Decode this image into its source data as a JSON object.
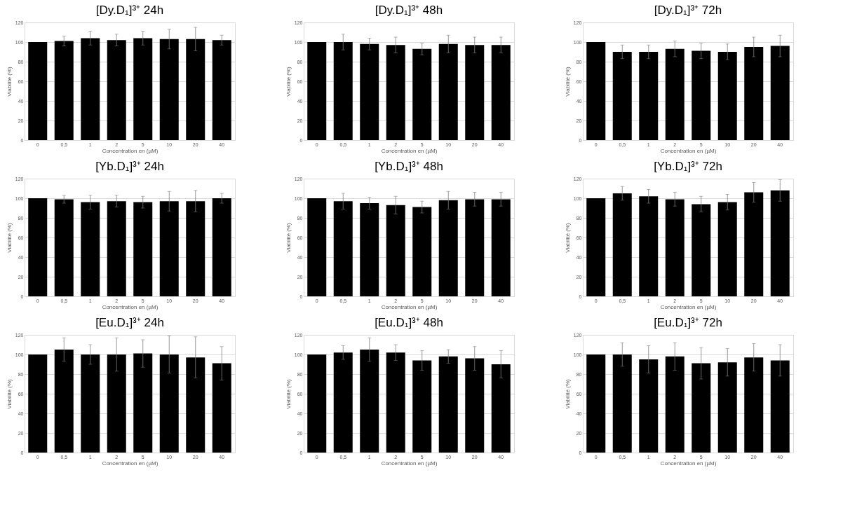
{
  "chart_data": [
    {
      "type": "bar",
      "title": "[Dy.D₁]³⁺ 24h",
      "xlabel": "Concentration en (µM)",
      "ylabel": "Viabilité (%)",
      "categories": [
        "0",
        "0,5",
        "1",
        "2",
        "5",
        "10",
        "20",
        "40"
      ],
      "values": [
        100,
        101,
        104,
        102,
        104,
        103,
        103,
        102
      ],
      "errors": [
        null,
        5,
        7,
        6,
        7,
        10,
        12,
        5
      ],
      "color": "#000000",
      "ylim": [
        0,
        120
      ],
      "yticks": [
        0,
        20,
        40,
        60,
        80,
        100,
        120
      ],
      "grid": "y"
    },
    {
      "type": "bar",
      "title": "[Dy.D₁]³⁺ 48h",
      "xlabel": "Concentration en (µM)",
      "ylabel": "Viabilité (%)",
      "categories": [
        "0",
        "0,5",
        "1",
        "2",
        "5",
        "10",
        "20",
        "40"
      ],
      "values": [
        100,
        100,
        98,
        97,
        93,
        98,
        97,
        97
      ],
      "errors": [
        null,
        8,
        6,
        8,
        6,
        9,
        8,
        8
      ],
      "color": "#000000",
      "ylim": [
        0,
        120
      ],
      "yticks": [
        0,
        20,
        40,
        60,
        80,
        100,
        120
      ],
      "grid": "y"
    },
    {
      "type": "bar",
      "title": "[Dy.D₁]³⁺ 72h",
      "xlabel": "Concentration en (µM)",
      "ylabel": "Viabilité (%)",
      "categories": [
        "0",
        "0,5",
        "1",
        "2",
        "5",
        "10",
        "20",
        "40"
      ],
      "values": [
        100,
        90,
        90,
        93,
        91,
        90,
        95,
        96
      ],
      "errors": [
        null,
        7,
        7,
        8,
        8,
        8,
        10,
        11
      ],
      "color": "#000000",
      "ylim": [
        0,
        120
      ],
      "yticks": [
        0,
        20,
        40,
        60,
        80,
        100,
        120
      ],
      "grid": "y"
    },
    {
      "type": "bar",
      "title": "[Yb.D₁]³⁺ 24h",
      "xlabel": "Concentration en (µM)",
      "ylabel": "Viabilité (%)",
      "categories": [
        "0",
        "0,5",
        "1",
        "2",
        "5",
        "10",
        "20",
        "40"
      ],
      "values": [
        100,
        99,
        96,
        97,
        96,
        97,
        97,
        100
      ],
      "errors": [
        null,
        4,
        7,
        6,
        6,
        10,
        11,
        5
      ],
      "color": "#000000",
      "ylim": [
        0,
        120
      ],
      "yticks": [
        0,
        20,
        40,
        60,
        80,
        100,
        120
      ],
      "grid": "y"
    },
    {
      "type": "bar",
      "title": "[Yb.D₁]³⁺ 48h",
      "xlabel": "Concentration en (µM)",
      "ylabel": "Viabilité (%)",
      "categories": [
        "0",
        "0,5",
        "1",
        "2",
        "5",
        "10",
        "20",
        "40"
      ],
      "values": [
        100,
        97,
        95,
        93,
        91,
        98,
        99,
        99
      ],
      "errors": [
        null,
        8,
        6,
        9,
        6,
        9,
        7,
        7
      ],
      "color": "#000000",
      "ylim": [
        0,
        120
      ],
      "yticks": [
        0,
        20,
        40,
        60,
        80,
        100,
        120
      ],
      "grid": "y"
    },
    {
      "type": "bar",
      "title": "[Yb.D₁]³⁺ 72h",
      "xlabel": "Concentration en (µM)",
      "ylabel": "Viabilité (%)",
      "categories": [
        "0",
        "0,5",
        "1",
        "2",
        "5",
        "10",
        "20",
        "40"
      ],
      "values": [
        100,
        105,
        102,
        99,
        94,
        96,
        106,
        108
      ],
      "errors": [
        null,
        7,
        7,
        7,
        8,
        8,
        10,
        11
      ],
      "color": "#000000",
      "ylim": [
        0,
        120
      ],
      "yticks": [
        0,
        20,
        40,
        60,
        80,
        100,
        120
      ],
      "grid": "y"
    },
    {
      "type": "bar",
      "title": "[Eu.D₁]³⁺ 24h",
      "xlabel": "Concentration en (µM)",
      "ylabel": "Viabilité (%)",
      "categories": [
        "0",
        "0,5",
        "1",
        "2",
        "5",
        "10",
        "20",
        "40"
      ],
      "values": [
        100,
        105,
        100,
        100,
        101,
        100,
        97,
        91
      ],
      "errors": [
        null,
        12,
        10,
        17,
        14,
        19,
        21,
        17
      ],
      "color": "#000000",
      "ylim": [
        0,
        120
      ],
      "yticks": [
        0,
        20,
        40,
        60,
        80,
        100,
        120
      ],
      "grid": "y"
    },
    {
      "type": "bar",
      "title": "[Eu.D₁]³⁺ 48h",
      "xlabel": "Concentration en (µM)",
      "ylabel": "Viabilité (%)",
      "categories": [
        "0",
        "0,5",
        "1",
        "2",
        "5",
        "10",
        "20",
        "40"
      ],
      "values": [
        100,
        102,
        105,
        102,
        94,
        98,
        96,
        90
      ],
      "errors": [
        null,
        7,
        12,
        8,
        10,
        7,
        12,
        14
      ],
      "color": "#000000",
      "ylim": [
        0,
        120
      ],
      "yticks": [
        0,
        20,
        40,
        60,
        80,
        100,
        120
      ],
      "grid": "y"
    },
    {
      "type": "bar",
      "title": "[Eu.D₁]³⁺ 72h",
      "xlabel": "Concentration en (µM)",
      "ylabel": "Viabilité (%)",
      "categories": [
        "0",
        "0,5",
        "1",
        "2",
        "5",
        "10",
        "20",
        "40"
      ],
      "values": [
        100,
        100,
        95,
        98,
        91,
        92,
        97,
        94
      ],
      "errors": [
        null,
        12,
        14,
        14,
        16,
        14,
        14,
        16
      ],
      "color": "#000000",
      "ylim": [
        0,
        120
      ],
      "yticks": [
        0,
        20,
        40,
        60,
        80,
        100,
        120
      ],
      "grid": "y"
    }
  ]
}
